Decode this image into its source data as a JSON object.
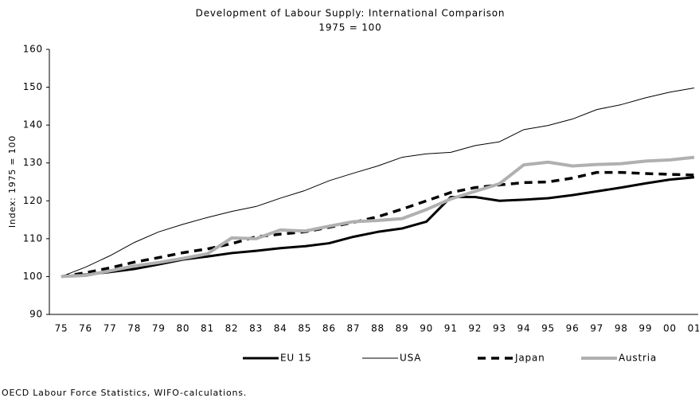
{
  "chart_data": {
    "type": "line",
    "title": "Development of Labour Supply: International Comparison",
    "subtitle": "1975 = 100",
    "y_label": "Index: 1975 = 100",
    "footnote": "OECD Labour Force Statistics, WIFO-calculations.",
    "categories": [
      "75",
      "76",
      "77",
      "78",
      "79",
      "80",
      "81",
      "82",
      "83",
      "84",
      "85",
      "86",
      "87",
      "88",
      "89",
      "90",
      "91",
      "92",
      "93",
      "94",
      "95",
      "96",
      "97",
      "98",
      "99",
      "00",
      "01"
    ],
    "ylim": [
      90,
      160
    ],
    "yticks": [
      90,
      100,
      110,
      120,
      130,
      140,
      150,
      160
    ],
    "grid": false,
    "legend": "bottom",
    "series": [
      {
        "name": "EU 15",
        "color": "#000000",
        "line_width": 3,
        "line_style": "solid",
        "values": [
          100,
          100.5,
          101.2,
          102,
          103.2,
          104.5,
          105.3,
          106.2,
          106.8,
          107.5,
          108,
          108.8,
          110.5,
          111.8,
          112.7,
          114.5,
          121,
          121,
          120,
          120.3,
          120.7,
          121.5,
          122.5,
          123.5,
          124.6,
          125.6,
          126.2
        ]
      },
      {
        "name": "USA",
        "color": "#000000",
        "line_width": 1,
        "line_style": "solid",
        "values": [
          100,
          102.5,
          105.5,
          109,
          111.8,
          113.8,
          115.6,
          117.2,
          118.5,
          120.7,
          122.7,
          125.3,
          127.3,
          129.2,
          131.5,
          132.4,
          132.8,
          134.6,
          135.6,
          138.8,
          139.9,
          141.6,
          144.1,
          145.4,
          147.2,
          148.7,
          149.8
        ]
      },
      {
        "name": "Japan",
        "color": "#000000",
        "line_width": 3.5,
        "line_style": "dashed",
        "values": [
          100,
          101,
          102.3,
          103.8,
          105,
          106.3,
          107.3,
          108.7,
          110.5,
          111.2,
          111.8,
          113,
          114.3,
          115.8,
          117.8,
          120,
          122.2,
          123.5,
          124.2,
          124.8,
          125,
          126,
          127.5,
          127.5,
          127.2,
          127,
          126.8
        ]
      },
      {
        "name": "Austria",
        "color": "#b0b0b0",
        "line_width": 4,
        "line_style": "solid",
        "values": [
          100,
          100.3,
          101.5,
          102.8,
          103.7,
          104.8,
          106,
          110.2,
          110,
          112.3,
          112,
          113.3,
          114.5,
          114.8,
          115.3,
          117.7,
          120.5,
          122.5,
          124.5,
          129.5,
          130.2,
          129.2,
          129.6,
          129.8,
          130.5,
          130.8,
          131.5
        ]
      }
    ]
  }
}
